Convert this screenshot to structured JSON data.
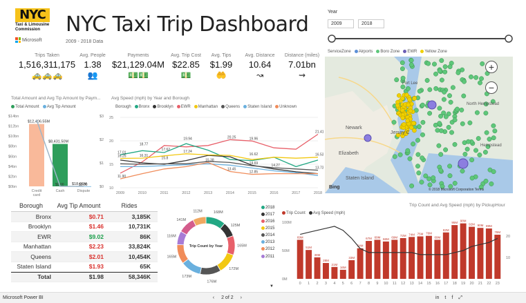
{
  "header": {
    "logo_text": "NYC",
    "logo_sub": "Taxi & Limousine Commission",
    "brand": "Microsoft",
    "title": "NYC Taxi Trip Dashboard",
    "subtitle": "2009 - 2018 Data"
  },
  "kpis": [
    {
      "label": "Trips Taken",
      "value": "1,516,311,175",
      "icon": "taxi-icon"
    },
    {
      "label": "Avg. People",
      "value": "1.38",
      "icon": "people-icon"
    },
    {
      "label": "Payments",
      "value": "$21,129.04M",
      "icon": "cash-stack-icon"
    },
    {
      "label": "Avg. Trip Cost",
      "value": "$22.85",
      "icon": "money-icon"
    },
    {
      "label": "Avg. Tips",
      "value": "$1.99",
      "icon": "tip-hand-icon"
    },
    {
      "label": "Avg. Distance",
      "value": "10.64",
      "icon": "route-icon"
    },
    {
      "label": "Distance (miles)",
      "value": "7.01bn",
      "icon": "route-pins-icon"
    }
  ],
  "year_filter": {
    "label": "Year",
    "from": "2009",
    "to": "2018"
  },
  "map": {
    "legend_title": "ServiceZone",
    "legend": [
      {
        "name": "Airports",
        "color": "#5b8fd6"
      },
      {
        "name": "Boro Zone",
        "color": "#5ec77a"
      },
      {
        "name": "EWR",
        "color": "#6b5db5"
      },
      {
        "name": "Yellow Zone",
        "color": "#f0d000"
      }
    ],
    "places": [
      "Newark",
      "Jersey C",
      "Elizabeth",
      "Fort Lee",
      "Staten Island",
      "Hempstead",
      "North Hempstead"
    ],
    "zoom_in": "+",
    "zoom_out": "−",
    "bing": "Bing",
    "copyright": "© 2018 Microsoft Corporation   Terms"
  },
  "bar_chart": {
    "title": "Total Amount and Avg Tip Amount by Paym...",
    "legend": [
      {
        "name": "Total Amount",
        "color": "#2e9e5b"
      },
      {
        "name": "Avg Tip Amount",
        "color": "#6ab0de"
      }
    ],
    "y_left_ticks": [
      "$14bn",
      "$12bn",
      "$10bn",
      "$8bn",
      "$6bn",
      "$4bn",
      "$2bn",
      "$0bn"
    ],
    "y_right_ticks": [
      "$3",
      "$2",
      "$1",
      "$0"
    ]
  },
  "line_chart": {
    "title": "Avg Speed (mph) by Year and Borough",
    "legend_title": "Borough",
    "legend": [
      {
        "name": "Bronx",
        "color": "#22a884"
      },
      {
        "name": "Brooklyn",
        "color": "#333333"
      },
      {
        "name": "EWR",
        "color": "#e8606a"
      },
      {
        "name": "Manhattan",
        "color": "#f2c811"
      },
      {
        "name": "Queens",
        "color": "#555555"
      },
      {
        "name": "Staten Island",
        "color": "#6ab0de"
      },
      {
        "name": "Unknown",
        "color": "#f08c5a"
      }
    ],
    "y_ticks": [
      "25",
      "20",
      "15",
      "10"
    ]
  },
  "table": {
    "columns": [
      "Borough",
      "Avg Tip Amount",
      "Rides"
    ],
    "rows": [
      {
        "borough": "Bronx",
        "tip": "$0.71",
        "rides": "3,185K",
        "color": "#d9302c"
      },
      {
        "borough": "Brooklyn",
        "tip": "$1.46",
        "rides": "10,731K",
        "color": "#d9302c"
      },
      {
        "borough": "EWR",
        "tip": "$9.02",
        "rides": "86K",
        "color": "#1a9e4a"
      },
      {
        "borough": "Manhattan",
        "tip": "$2.23",
        "rides": "33,824K",
        "color": "#d9302c"
      },
      {
        "borough": "Queens",
        "tip": "$2.01",
        "rides": "10,454K",
        "color": "#d9302c"
      },
      {
        "borough": "Staten Island",
        "tip": "$1.93",
        "rides": "65K",
        "color": "#d9302c"
      }
    ],
    "total": {
      "borough": "Total",
      "tip": "$1.98",
      "rides": "58,346K"
    }
  },
  "donut": {
    "center_label": "Trip Count by Year",
    "labels": [
      "168M",
      "125M",
      "165M",
      "172M",
      "176M",
      "173M",
      "165M",
      "116M",
      "141M",
      "112M"
    ],
    "legend": [
      {
        "name": "2018",
        "color": "#22a884"
      },
      {
        "name": "2017",
        "color": "#333333"
      },
      {
        "name": "2016",
        "color": "#e8606a"
      },
      {
        "name": "2015",
        "color": "#f2c811"
      },
      {
        "name": "2014",
        "color": "#555555"
      },
      {
        "name": "2013",
        "color": "#6ab0de"
      },
      {
        "name": "2012",
        "color": "#f08c5a"
      },
      {
        "name": "2011",
        "color": "#a77bd6"
      }
    ]
  },
  "combo_chart": {
    "title": "Trip Count and Avg Speed (mph) by PickupHour",
    "legend": [
      {
        "name": "Trip Count",
        "color": "#c0392b"
      },
      {
        "name": "Avg Speed (mph)",
        "color": "#333333"
      }
    ],
    "y_left_ticks": [
      "100M",
      "50M",
      "0M"
    ],
    "y_right_ticks": [
      "20",
      "10"
    ]
  },
  "footer": {
    "app": "Microsoft Power BI",
    "page": "2 of 2"
  },
  "chart_data": [
    {
      "type": "bar",
      "title": "Total Amount and Avg Tip Amount by Paym...",
      "categories": [
        "Credit card",
        "Cash",
        "Dispute"
      ],
      "series": [
        {
          "name": "Total Amount",
          "values": [
            12406.55,
            8431.5,
            18.66
          ],
          "labels": [
            "$12,406.55M",
            "$8,431.50M",
            "$18.66M"
          ]
        },
        {
          "name": "Avg Tip Amount",
          "values": [
            3.3,
            0.0,
            0.0
          ],
          "labels": [
            "",
            "$0.00",
            "$0.00"
          ]
        }
      ],
      "ylim": [
        0,
        14000
      ],
      "colors": [
        "#f9b99a",
        "#2e9e5b",
        "#6ab0de"
      ]
    },
    {
      "type": "line",
      "title": "Avg Speed (mph) by Year and Borough",
      "x": [
        "2009",
        "2010",
        "2011",
        "2012",
        "2013",
        "2014",
        "2015",
        "2016",
        "2017",
        "2018"
      ],
      "ylim": [
        10,
        25
      ],
      "series": [
        {
          "name": "EWR",
          "values": [
            13.1,
            15.5,
            19.0,
            18.7,
            19.0,
            20.25,
            19.96,
            18.5,
            18.2,
            21.4
          ]
        },
        {
          "name": "Bronx",
          "values": [
            17.01,
            17.9,
            17.5,
            19.4,
            18.0,
            16.0,
            15.8,
            16.5,
            14.5,
            15.9
          ]
        },
        {
          "name": "Brooklyn",
          "values": [
            15.9,
            15.3,
            15.0,
            15.8,
            16.9,
            16.6,
            14.8,
            14.0,
            13.4,
            13.0
          ]
        },
        {
          "name": "Manhattan",
          "values": [
            16.25,
            16.31,
            16.8,
            17.24,
            17.0,
            16.9,
            16.0,
            16.5,
            16.3,
            16.5
          ]
        },
        {
          "name": "Queens",
          "values": [
            15.1,
            15.0,
            15.1,
            15.1,
            15.6,
            15.38,
            14.69,
            14.27,
            14.0,
            13.73
          ]
        },
        {
          "name": "Staten Island",
          "values": [
            14.5,
            14.5,
            14.7,
            14.9,
            15.1,
            14.8,
            14.2,
            13.6,
            13.2,
            12.6
          ]
        },
        {
          "name": "Unknown",
          "values": [
            11.9,
            13.0,
            14.0,
            14.5,
            15.38,
            13.45,
            12.85,
            13.0,
            13.0,
            13.0
          ]
        }
      ],
      "data_labels": [
        "21.41",
        "20.25",
        "19.96",
        "19.94",
        "18.77",
        "17.62",
        "17.01",
        "17.24",
        "16.31",
        "16.25",
        "16.53",
        "16.62",
        "15.8",
        "15.38",
        "14.69",
        "14.27",
        "13.73",
        "13.45",
        "12.85",
        "11.90"
      ]
    },
    {
      "type": "pie",
      "title": "Trip Count by Year",
      "labels": [
        "168M",
        "125M",
        "165M",
        "172M",
        "176M",
        "173M",
        "165M",
        "116M",
        "141M",
        "112M"
      ],
      "values": [
        168,
        125,
        165,
        172,
        176,
        173,
        165,
        116,
        141,
        112
      ],
      "colors": [
        "#22a884",
        "#333333",
        "#e8606a",
        "#f2c811",
        "#555555",
        "#6ab0de",
        "#f08c5a",
        "#a77bd6",
        "#d45c8c",
        "#f0a860"
      ]
    },
    {
      "type": "bar",
      "title": "Trip Count and Avg Speed (mph) by PickupHour",
      "categories": [
        "0",
        "1",
        "2",
        "3",
        "4",
        "5",
        "6",
        "7",
        "8",
        "9",
        "10",
        "11",
        "12",
        "13",
        "14",
        "15",
        "16",
        "17",
        "18",
        "19",
        "20",
        "21",
        "22",
        "23"
      ],
      "series": [
        {
          "name": "Trip Count",
          "values": [
            69,
            51,
            38,
            28,
            21,
            16,
            33,
            54,
            67,
            69,
            66,
            69,
            72,
            74,
            75,
            76,
            69,
            82,
            95,
            98,
            92,
            90,
            89,
            78
          ]
        },
        {
          "name": "Avg Speed (mph)",
          "values": [
            22,
            23,
            24,
            25,
            26,
            24,
            20,
            15,
            13,
            13,
            13,
            13,
            13,
            13,
            12,
            12,
            12,
            12,
            13,
            14,
            16,
            17,
            18,
            20
          ]
        }
      ],
      "bar_labels": [
        "69M",
        "51M",
        "38M",
        "28M",
        "21M",
        "16M",
        "33M",
        "54M",
        "67M",
        "69M",
        "66M",
        "69M",
        "72M",
        "74M",
        "75M",
        "76M",
        "69M",
        "82M",
        "95M",
        "98M",
        "92M",
        "90M",
        "89M",
        "78M"
      ],
      "ylim": [
        0,
        100
      ]
    }
  ]
}
